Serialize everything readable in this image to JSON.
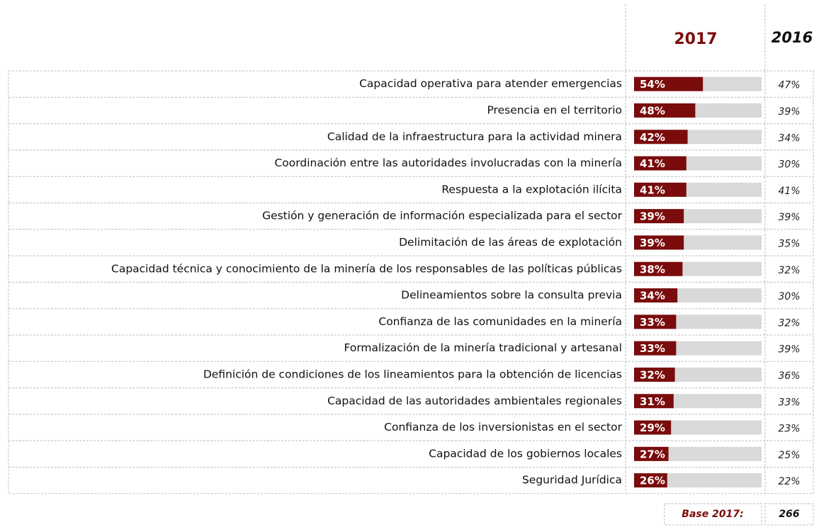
{
  "chart_data": {
    "type": "bar",
    "categories": [
      "Capacidad operativa para atender emergencias",
      "Presencia en el territorio",
      "Calidad de la infraestructura para la actividad minera",
      "Coordinación entre las autoridades involucradas con la minería",
      "Respuesta a la explotación ilícita",
      "Gestión y generación de información especializada para el sector",
      "Delimitación de las áreas de explotación",
      "Capacidad técnica y conocimiento de la minería de los responsables de las políticas públicas",
      "Delineamientos sobre la consulta previa",
      "Confianza de las comunidades en la minería",
      "Formalización de la minería tradicional y artesanal",
      "Definición de condiciones de los lineamientos para la obtención de licencias",
      "Capacidad de las autoridades ambientales regionales",
      "Confianza de los inversionistas en el sector",
      "Capacidad de los gobiernos locales",
      "Seguridad Jurídica"
    ],
    "series": [
      {
        "name": "2017",
        "color": "#7a0c0c",
        "values": [
          54,
          48,
          42,
          41,
          41,
          39,
          39,
          38,
          34,
          33,
          33,
          32,
          31,
          29,
          27,
          26
        ],
        "value_labels": [
          "54%",
          "48%",
          "42%",
          "41%",
          "41%",
          "39%",
          "39%",
          "38%",
          "34%",
          "33%",
          "33%",
          "32%",
          "31%",
          "29%",
          "27%",
          "26%"
        ]
      },
      {
        "name": "2016",
        "values": [
          47,
          39,
          34,
          30,
          41,
          39,
          35,
          32,
          30,
          32,
          39,
          36,
          33,
          23,
          25,
          22
        ],
        "value_labels": [
          "47%",
          "39%",
          "34%",
          "30%",
          "41%",
          "39%",
          "35%",
          "32%",
          "30%",
          "32%",
          "39%",
          "36%",
          "33%",
          "23%",
          "25%",
          "22%"
        ]
      }
    ],
    "xlim": [
      0,
      100
    ],
    "track_color": "#d9d9d9",
    "base_label": "Base 2017:",
    "base_value": 266
  }
}
